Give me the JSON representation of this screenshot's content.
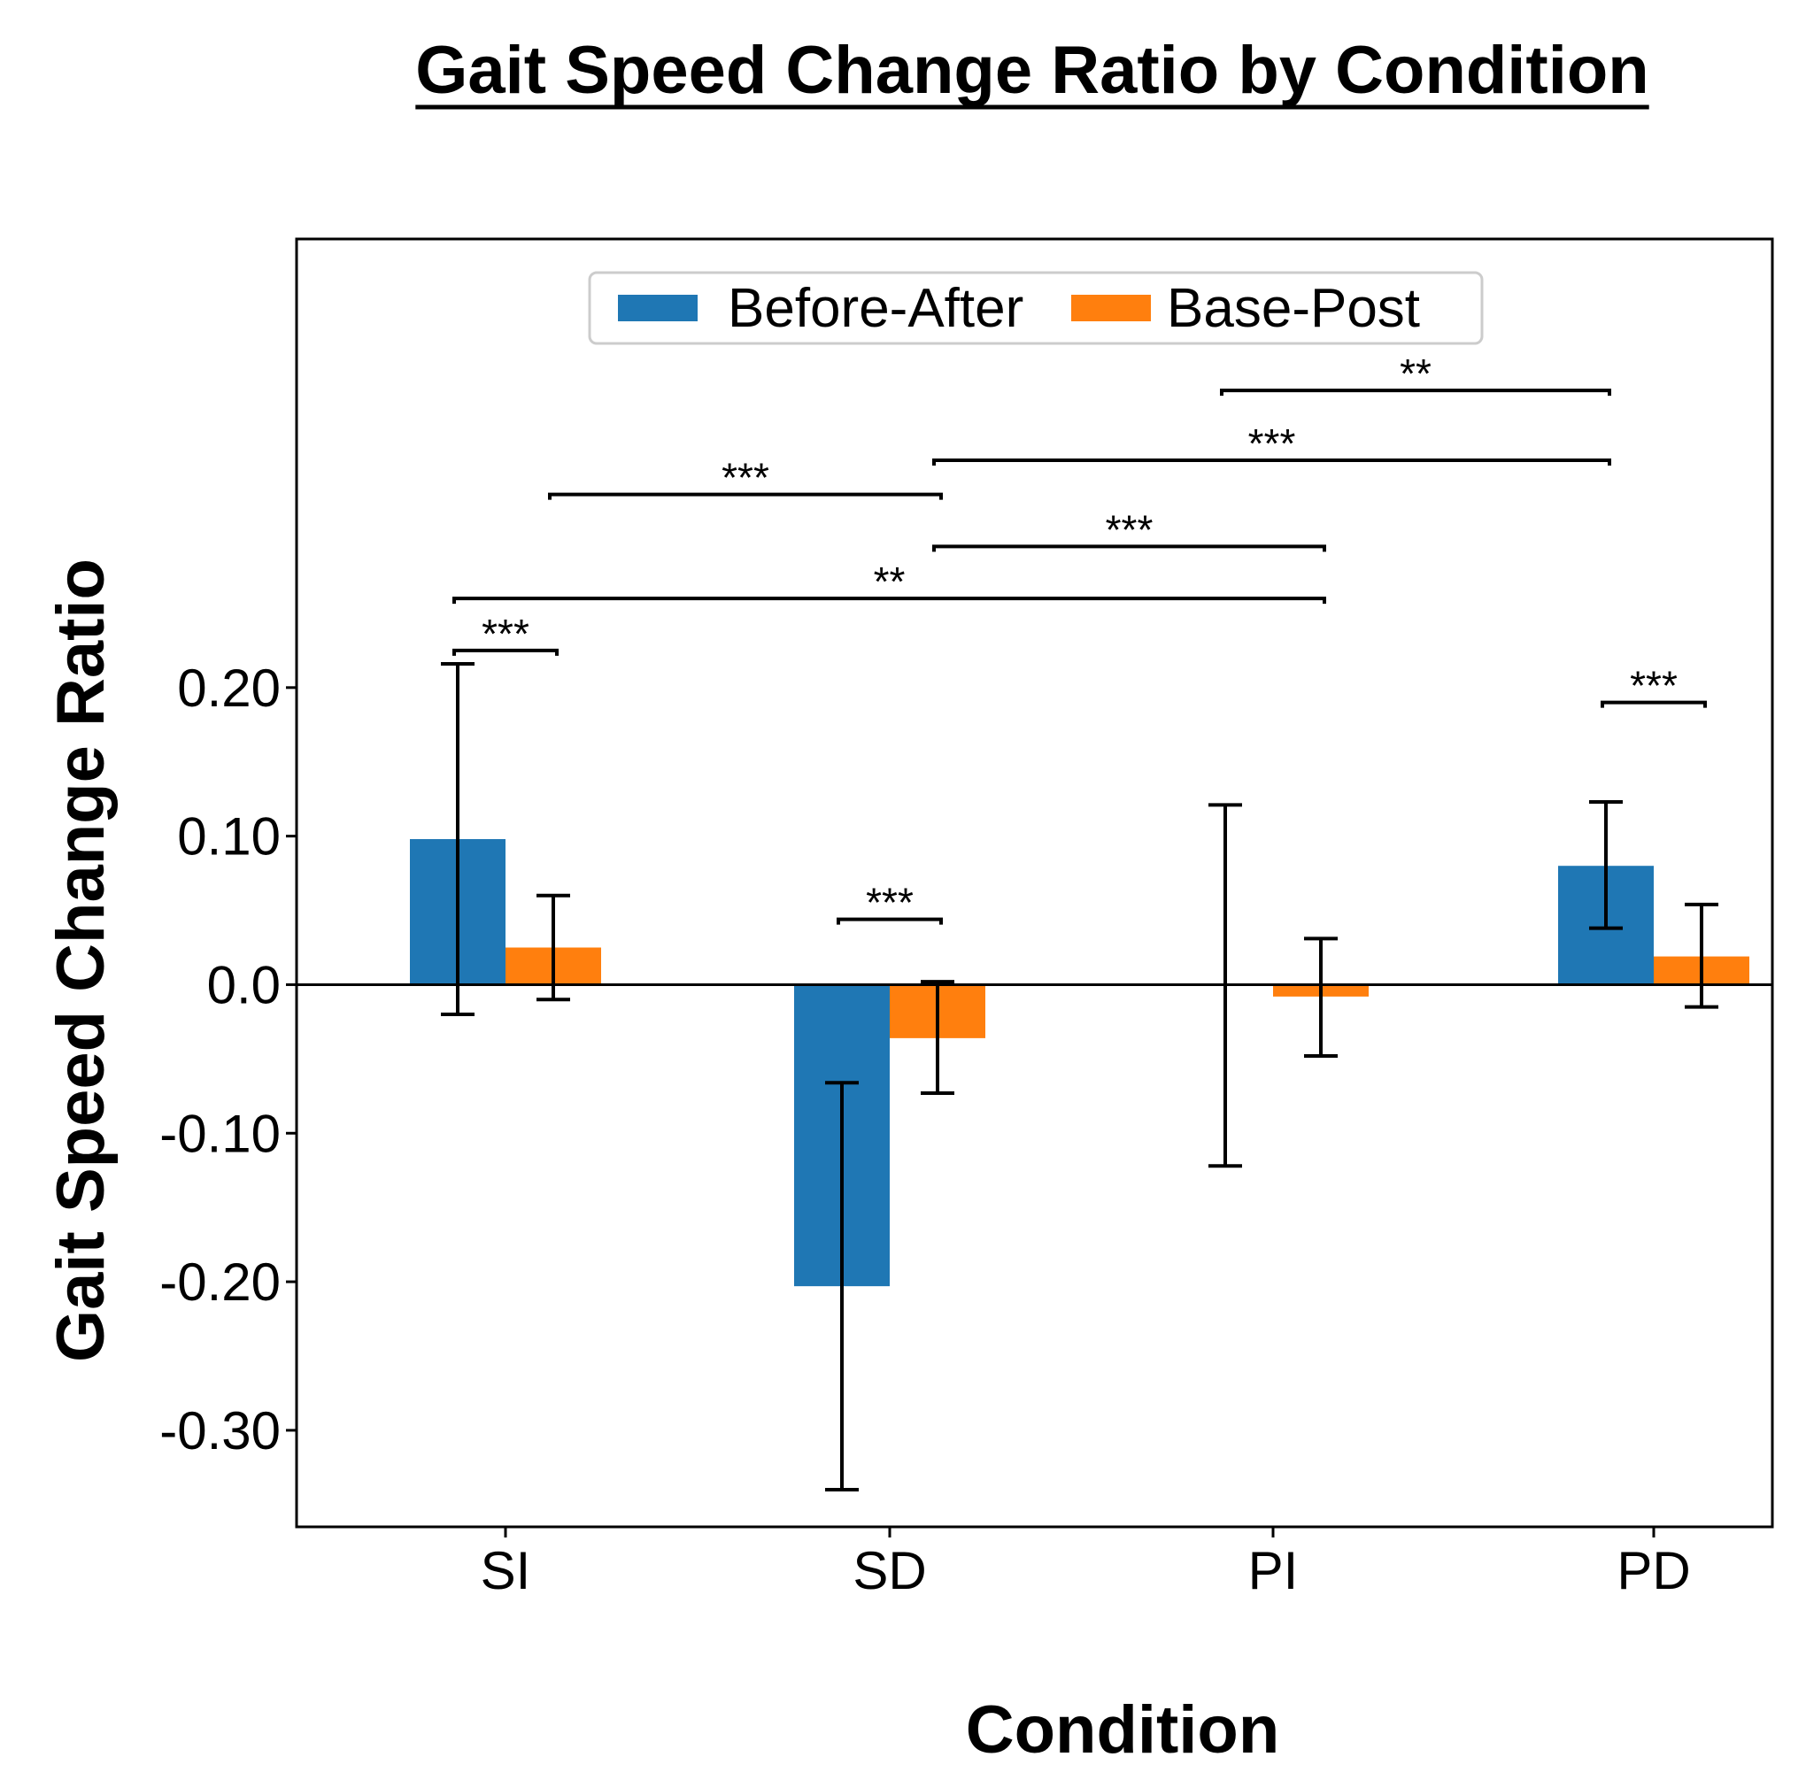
{
  "chart_data": {
    "type": "bar",
    "title": "Gait Speed Change Ratio by Condition",
    "xlabel": "Condition",
    "ylabel": "Gait Speed Change Ratio",
    "categories": [
      "SI",
      "SD",
      "PI",
      "PD"
    ],
    "series": [
      {
        "name": "Before-After",
        "color": "#1f77b4",
        "values": [
          0.098,
          -0.203,
          0.0,
          0.08
        ],
        "err_low": [
          -0.02,
          -0.34,
          -0.122,
          0.038
        ],
        "err_high": [
          0.216,
          -0.066,
          0.121,
          0.123
        ]
      },
      {
        "name": "Base-Post",
        "color": "#ff7f0e",
        "values": [
          0.025,
          -0.036,
          -0.008,
          0.019
        ],
        "err_low": [
          -0.01,
          -0.073,
          -0.048,
          -0.015
        ],
        "err_high": [
          0.06,
          0.002,
          0.031,
          0.054
        ]
      }
    ],
    "ylim": [
      -0.365,
      0.502
    ],
    "yticks": [
      0.2,
      0.1,
      0.0,
      -0.1,
      -0.2,
      -0.3
    ],
    "ytick_labels": [
      "0.20",
      "0.10",
      "0.0",
      "-0.10",
      "-0.20",
      "-0.30"
    ],
    "zero_line": true,
    "legend": {
      "position": "top-center",
      "columns": 2
    },
    "significance": [
      {
        "label": "***",
        "from": {
          "category": 0,
          "series": 0
        },
        "to": {
          "category": 0,
          "series": 1
        },
        "y": 0.225
      },
      {
        "label": "***",
        "from": {
          "category": 1,
          "series": 0
        },
        "to": {
          "category": 1,
          "series": 1
        },
        "y": 0.044
      },
      {
        "label": "***",
        "from": {
          "category": 3,
          "series": 0
        },
        "to": {
          "category": 3,
          "series": 1
        },
        "y": 0.19
      },
      {
        "label": "**",
        "from": {
          "category": 0,
          "series": 0
        },
        "to": {
          "category": 2,
          "series": 1
        },
        "y": 0.26
      },
      {
        "label": "***",
        "from": {
          "category": 1,
          "series": 1
        },
        "to": {
          "category": 2,
          "series": 1
        },
        "y": 0.295
      },
      {
        "label": "***",
        "from": {
          "category": 0,
          "series": 1
        },
        "to": {
          "category": 1,
          "series": 1
        },
        "y": 0.33
      },
      {
        "label": "***",
        "from": {
          "category": 1,
          "series": 1
        },
        "to": {
          "category": 3,
          "series": 0
        },
        "y": 0.353
      },
      {
        "label": "**",
        "from": {
          "category": 2,
          "series": 0
        },
        "to": {
          "category": 3,
          "series": 0
        },
        "y": 0.4
      }
    ]
  }
}
